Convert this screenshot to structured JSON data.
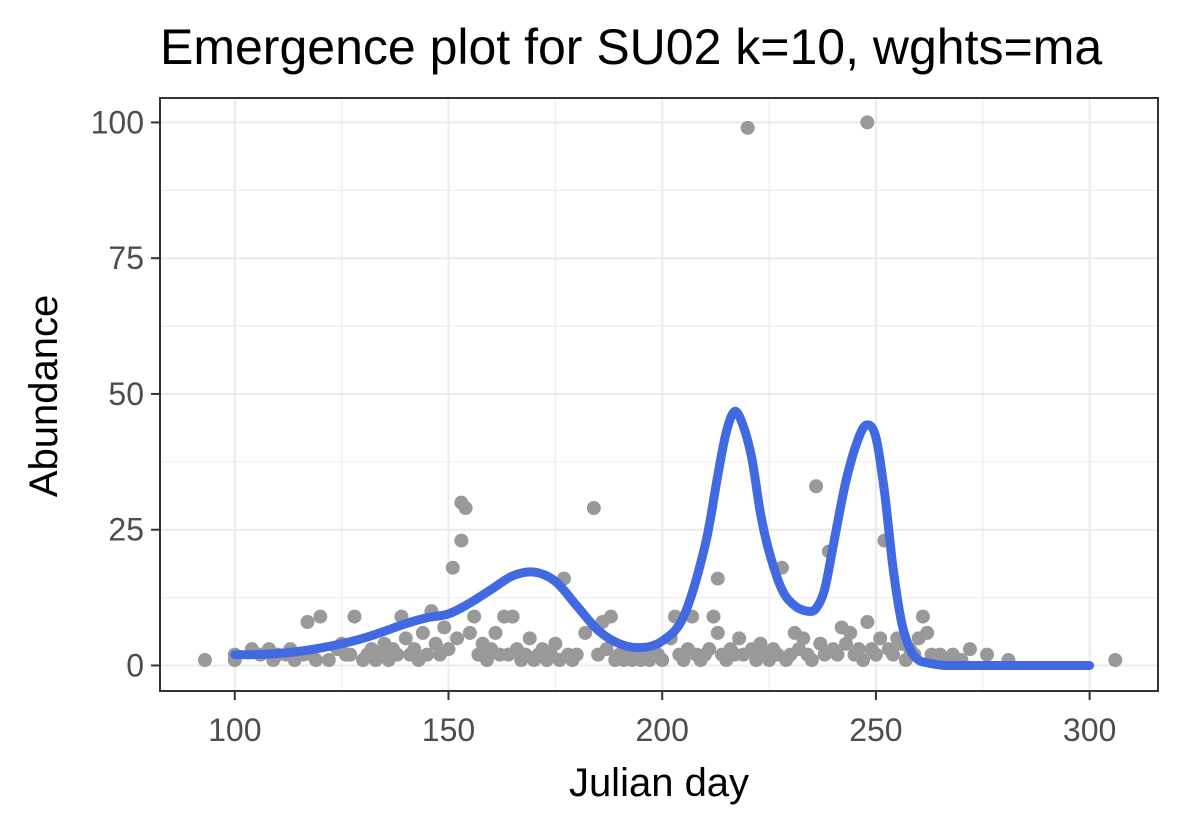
{
  "chart_data": {
    "type": "scatter",
    "title": "Emergence plot for SU02 k=10, wghts=ma",
    "xlabel": "Julian day",
    "ylabel": "Abundance",
    "xlim": [
      82.5,
      316
    ],
    "ylim": [
      -4.7,
      104.5
    ],
    "x_ticks": [
      100,
      150,
      200,
      250,
      300
    ],
    "y_ticks": [
      0,
      25,
      50,
      75,
      100
    ],
    "x_tick_labels": [
      "100",
      "150",
      "200",
      "250",
      "300"
    ],
    "y_tick_labels": [
      "0",
      "25",
      "50",
      "75",
      "100"
    ],
    "grid": true,
    "legend": "none",
    "colors": {
      "points": "#999999",
      "fit": "#4169e1",
      "grid": "#ebebeb",
      "axis": "#333333"
    },
    "series": [
      {
        "type": "scatter",
        "points": [
          [
            93,
            1
          ],
          [
            100,
            2
          ],
          [
            100,
            1
          ],
          [
            104,
            3
          ],
          [
            106,
            2
          ],
          [
            108,
            3
          ],
          [
            109,
            1
          ],
          [
            110,
            2
          ],
          [
            112,
            2
          ],
          [
            113,
            3
          ],
          [
            114,
            1
          ],
          [
            116,
            2
          ],
          [
            117,
            8
          ],
          [
            118,
            2
          ],
          [
            119,
            1
          ],
          [
            120,
            9
          ],
          [
            122,
            1
          ],
          [
            124,
            3
          ],
          [
            125,
            4
          ],
          [
            126,
            2
          ],
          [
            127,
            2
          ],
          [
            128,
            9
          ],
          [
            130,
            1
          ],
          [
            131,
            2
          ],
          [
            132,
            3
          ],
          [
            133,
            1
          ],
          [
            134,
            2
          ],
          [
            135,
            4
          ],
          [
            136,
            1
          ],
          [
            137,
            3
          ],
          [
            138,
            2
          ],
          [
            139,
            9
          ],
          [
            140,
            5
          ],
          [
            141,
            2
          ],
          [
            142,
            3
          ],
          [
            143,
            1
          ],
          [
            144,
            6
          ],
          [
            145,
            2
          ],
          [
            146,
            10
          ],
          [
            147,
            4
          ],
          [
            148,
            2
          ],
          [
            149,
            7
          ],
          [
            150,
            3
          ],
          [
            151,
            18
          ],
          [
            152,
            5
          ],
          [
            153,
            30
          ],
          [
            153,
            23
          ],
          [
            154,
            29
          ],
          [
            155,
            6
          ],
          [
            156,
            9
          ],
          [
            157,
            2
          ],
          [
            158,
            4
          ],
          [
            159,
            1
          ],
          [
            160,
            3
          ],
          [
            161,
            6
          ],
          [
            162,
            2
          ],
          [
            163,
            9
          ],
          [
            164,
            2
          ],
          [
            165,
            9
          ],
          [
            166,
            3
          ],
          [
            167,
            1
          ],
          [
            168,
            2
          ],
          [
            169,
            5
          ],
          [
            170,
            1
          ],
          [
            171,
            2
          ],
          [
            172,
            3
          ],
          [
            173,
            1
          ],
          [
            174,
            2
          ],
          [
            175,
            4
          ],
          [
            176,
            1
          ],
          [
            177,
            16
          ],
          [
            178,
            2
          ],
          [
            179,
            1
          ],
          [
            180,
            2
          ],
          [
            182,
            6
          ],
          [
            184,
            29
          ],
          [
            185,
            2
          ],
          [
            186,
            8
          ],
          [
            187,
            3
          ],
          [
            188,
            9
          ],
          [
            189,
            1
          ],
          [
            190,
            2
          ],
          [
            191,
            1
          ],
          [
            192,
            3
          ],
          [
            193,
            1
          ],
          [
            194,
            2
          ],
          [
            195,
            1
          ],
          [
            196,
            2
          ],
          [
            197,
            1
          ],
          [
            198,
            3
          ],
          [
            199,
            2
          ],
          [
            200,
            1
          ],
          [
            202,
            5
          ],
          [
            203,
            9
          ],
          [
            204,
            2
          ],
          [
            205,
            1
          ],
          [
            206,
            3
          ],
          [
            207,
            9
          ],
          [
            208,
            2
          ],
          [
            209,
            1
          ],
          [
            210,
            2
          ],
          [
            211,
            3
          ],
          [
            212,
            9
          ],
          [
            213,
            6
          ],
          [
            213,
            16
          ],
          [
            214,
            2
          ],
          [
            215,
            1
          ],
          [
            216,
            3
          ],
          [
            217,
            2
          ],
          [
            218,
            5
          ],
          [
            219,
            2
          ],
          [
            220,
            99
          ],
          [
            221,
            3
          ],
          [
            222,
            1
          ],
          [
            223,
            4
          ],
          [
            224,
            2
          ],
          [
            225,
            1
          ],
          [
            226,
            3
          ],
          [
            227,
            2
          ],
          [
            228,
            18
          ],
          [
            229,
            1
          ],
          [
            230,
            2
          ],
          [
            231,
            6
          ],
          [
            232,
            3
          ],
          [
            233,
            5
          ],
          [
            234,
            2
          ],
          [
            235,
            1
          ],
          [
            236,
            33
          ],
          [
            237,
            4
          ],
          [
            238,
            2
          ],
          [
            239,
            21
          ],
          [
            240,
            3
          ],
          [
            241,
            2
          ],
          [
            242,
            7
          ],
          [
            243,
            4
          ],
          [
            244,
            6
          ],
          [
            245,
            2
          ],
          [
            246,
            3
          ],
          [
            247,
            1
          ],
          [
            248,
            8
          ],
          [
            248,
            100
          ],
          [
            249,
            3
          ],
          [
            250,
            2
          ],
          [
            251,
            5
          ],
          [
            252,
            23
          ],
          [
            253,
            3
          ],
          [
            254,
            2
          ],
          [
            255,
            5
          ],
          [
            256,
            4
          ],
          [
            257,
            1
          ],
          [
            258,
            3
          ],
          [
            259,
            2
          ],
          [
            260,
            5
          ],
          [
            261,
            9
          ],
          [
            262,
            6
          ],
          [
            263,
            2
          ],
          [
            264,
            1
          ],
          [
            265,
            2
          ],
          [
            267,
            1
          ],
          [
            268,
            2
          ],
          [
            270,
            1
          ],
          [
            272,
            3
          ],
          [
            276,
            2
          ],
          [
            281,
            1
          ],
          [
            306,
            1
          ]
        ]
      },
      {
        "type": "line",
        "x": [
          100,
          105,
          110,
          115,
          120,
          125,
          130,
          135,
          140,
          145,
          150,
          155,
          160,
          165,
          170,
          175,
          180,
          185,
          190,
          195,
          200,
          205,
          210,
          213,
          215,
          217,
          219,
          221,
          223,
          225,
          228,
          231,
          234,
          236,
          238,
          240,
          243,
          246,
          248,
          250,
          252,
          254,
          256,
          258,
          260,
          262,
          264,
          266,
          270,
          280,
          290,
          300
        ],
        "values": [
          2,
          2,
          2.2,
          2.6,
          3.2,
          4,
          5,
          6.3,
          7.7,
          8.8,
          9.5,
          11.5,
          14,
          16.5,
          17.2,
          15.5,
          11,
          6.5,
          4,
          3.3,
          4.5,
          9,
          22,
          35,
          43,
          46.8,
          44,
          38,
          28,
          21,
          14,
          11,
          10,
          10.5,
          14,
          22,
          34,
          42,
          44.3,
          42,
          32,
          18,
          8,
          3,
          1,
          0.5,
          0.2,
          0,
          0,
          0,
          0,
          0
        ]
      }
    ]
  }
}
